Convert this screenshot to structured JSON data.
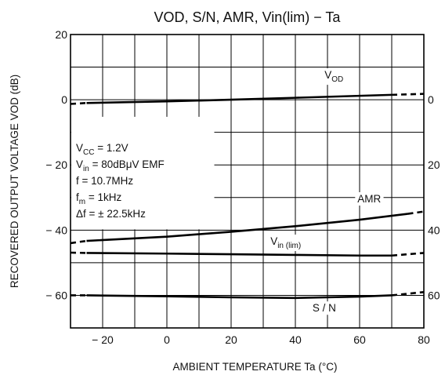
{
  "chart_data": {
    "type": "line",
    "title": "VOD, S/N, AMR, Vin(lim) − Ta",
    "xlabel": "AMBIENT TEMPERATURE Ta (°C)",
    "ylabel": "RECOVERED OUTPUT VOLTAGE VOD (dB)",
    "xlim": [
      -30,
      80
    ],
    "ylim": [
      -70,
      20
    ],
    "x_ticks": [
      -20,
      0,
      20,
      40,
      60,
      80
    ],
    "y_ticks_left": [
      20,
      0,
      -20,
      -40,
      -60
    ],
    "y_ticks_right": [
      "0",
      "20",
      "40",
      "60"
    ],
    "y_ticks_right_at": [
      0,
      -20,
      -40,
      -60
    ],
    "grid": true,
    "conditions": [
      {
        "base": "V",
        "sub": "CC",
        "rest": " = 1.2V"
      },
      {
        "base": "V",
        "sub": "in",
        "rest": " = 80dBμV EMF"
      },
      {
        "base": "f",
        "sub": "",
        "rest": " = 10.7MHz"
      },
      {
        "base": "f",
        "sub": "m",
        "rest": " = 1kHz"
      },
      {
        "base": "Δf",
        "sub": "",
        "rest": " = ± 22.5kHz"
      }
    ],
    "series": [
      {
        "name": "VOD",
        "label_base": "V",
        "label_sub": "OD",
        "label_at": [
          52,
          6.5
        ],
        "x": [
          -25,
          0,
          20,
          40,
          60,
          70
        ],
        "y": [
          -1.0,
          -0.5,
          0.0,
          0.6,
          1.2,
          1.5
        ],
        "dashed_left": [
          [
            -30,
            -1.3
          ],
          [
            -25,
            -1.0
          ]
        ],
        "dashed_right": [
          [
            70,
            1.5
          ],
          [
            80,
            1.8
          ]
        ]
      },
      {
        "name": "AMR",
        "label_base": "AMR",
        "label_sub": "",
        "label_at": [
          63,
          -31.5
        ],
        "x": [
          -25,
          0,
          20,
          40,
          60,
          75
        ],
        "y": [
          -43.3,
          -42.0,
          -40.5,
          -38.8,
          -36.8,
          -35.0
        ],
        "dashed_left": [
          [
            -30,
            -44.0
          ],
          [
            -25,
            -43.3
          ]
        ],
        "dashed_right": [
          [
            75,
            -35.0
          ],
          [
            80,
            -34.3
          ]
        ]
      },
      {
        "name": "Vin (lim)",
        "label_base": "V",
        "label_sub": "in (lim)",
        "label_at": [
          37,
          -44.5
        ],
        "x": [
          -25,
          0,
          20,
          40,
          60,
          70
        ],
        "y": [
          -47.0,
          -47.2,
          -47.4,
          -47.6,
          -47.8,
          -47.8
        ],
        "dashed_left": [
          [
            -30,
            -46.9
          ],
          [
            -25,
            -47.0
          ]
        ],
        "dashed_right": [
          [
            70,
            -47.8
          ],
          [
            80,
            -47.0
          ]
        ]
      },
      {
        "name": "S/N",
        "label_base": "S / N",
        "label_sub": "",
        "label_at": [
          49,
          -65
        ],
        "x": [
          -25,
          0,
          20,
          40,
          60,
          70
        ],
        "y": [
          -60.0,
          -60.3,
          -60.6,
          -60.8,
          -60.4,
          -60.0
        ],
        "dashed_left": [
          [
            -30,
            -60.0
          ],
          [
            -25,
            -60.0
          ]
        ],
        "dashed_right": [
          [
            70,
            -60.0
          ],
          [
            80,
            -59.0
          ]
        ]
      }
    ]
  }
}
